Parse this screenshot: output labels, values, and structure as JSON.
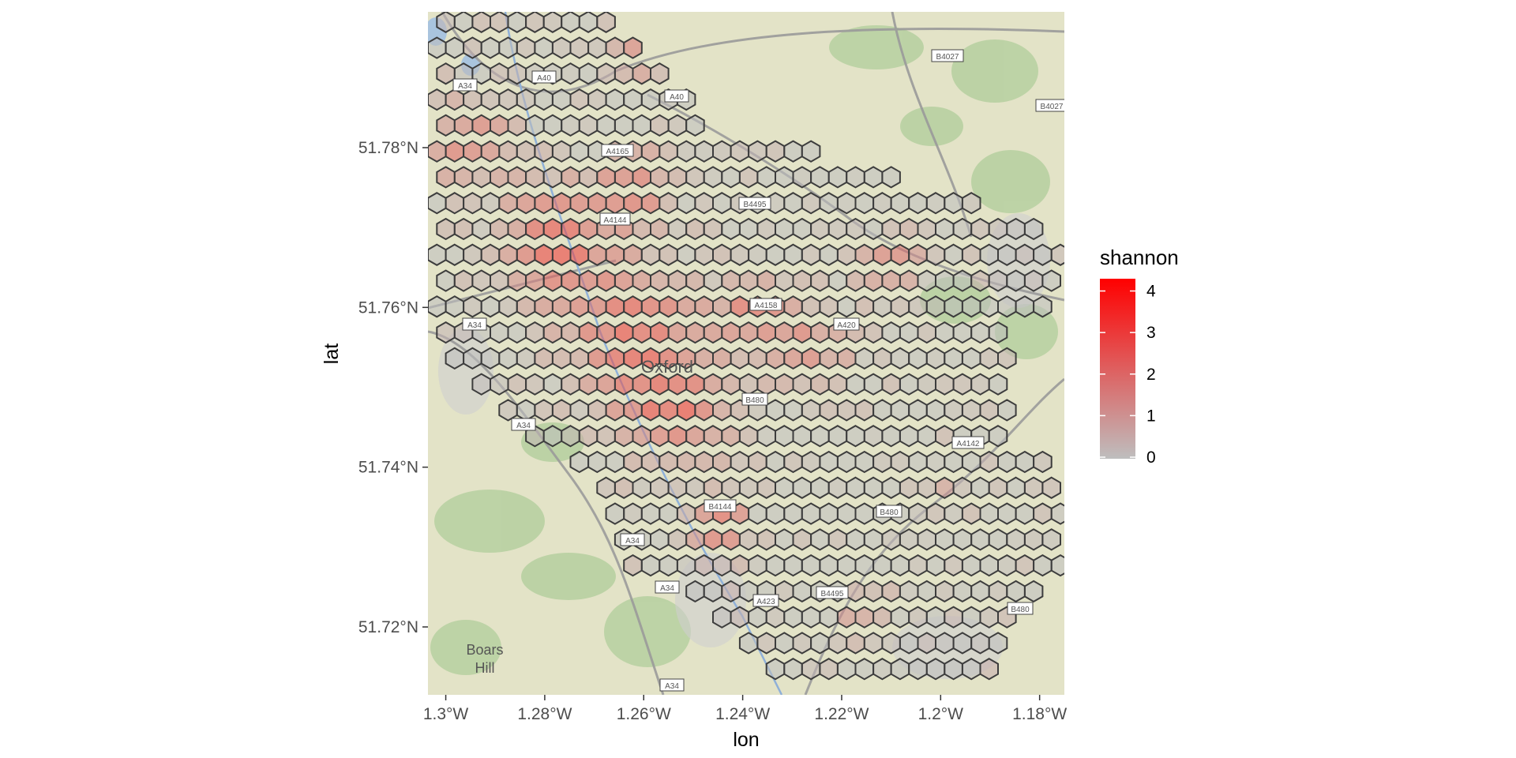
{
  "chart_data": {
    "type": "hexbin-map",
    "x_axis": {
      "title": "lon",
      "range": [
        -1.3036,
        -1.175
      ],
      "ticks": [
        {
          "value": -1.3,
          "label": "1.3°W"
        },
        {
          "value": -1.28,
          "label": "1.28°W"
        },
        {
          "value": -1.26,
          "label": "1.26°W"
        },
        {
          "value": -1.24,
          "label": "1.24°W"
        },
        {
          "value": -1.22,
          "label": "1.22°W"
        },
        {
          "value": -1.2,
          "label": "1.2°W"
        },
        {
          "value": -1.18,
          "label": "1.18°W"
        }
      ]
    },
    "y_axis": {
      "title": "lat",
      "range": [
        51.7115,
        51.797
      ],
      "ticks": [
        {
          "value": 51.72,
          "label": "51.72°N"
        },
        {
          "value": 51.74,
          "label": "51.74°N"
        },
        {
          "value": 51.76,
          "label": "51.76°N"
        },
        {
          "value": 51.78,
          "label": "51.78°N"
        }
      ]
    },
    "hex": {
      "lon_step": 0.0036,
      "lat_step": 0.00324,
      "origin_lon": -1.3036,
      "origin_lat": 51.7115
    },
    "clusters": [
      {
        "center": [
          -1.278,
          51.768
        ],
        "radius": 0.011,
        "peak": 2.8
      },
      {
        "center": [
          -1.262,
          51.757
        ],
        "radius": 0.013,
        "peak": 2.6
      },
      {
        "center": [
          -1.254,
          51.747
        ],
        "radius": 0.011,
        "peak": 2.6
      },
      {
        "center": [
          -1.262,
          51.775
        ],
        "radius": 0.008,
        "peak": 2.2
      },
      {
        "center": [
          -1.296,
          51.781
        ],
        "radius": 0.009,
        "peak": 2.0
      },
      {
        "center": [
          -1.245,
          51.733
        ],
        "radius": 0.006,
        "peak": 2.7
      },
      {
        "center": [
          -1.227,
          51.755
        ],
        "radius": 0.008,
        "peak": 2.1
      },
      {
        "center": [
          -1.21,
          51.765
        ],
        "radius": 0.006,
        "peak": 1.9
      },
      {
        "center": [
          -1.215,
          51.722
        ],
        "radius": 0.005,
        "peak": 1.5
      },
      {
        "center": [
          -1.238,
          51.76
        ],
        "radius": 0.007,
        "peak": 2.0
      },
      {
        "center": [
          -1.262,
          51.791
        ],
        "radius": 0.005,
        "peak": 1.6
      },
      {
        "center": [
          -1.2,
          51.736
        ],
        "radius": 0.004,
        "peak": 1.2
      }
    ],
    "fill_scale": {
      "name": "shannon",
      "min": 0,
      "max": 4.2,
      "low_color": "#bebebe",
      "high_color": "#ff0000",
      "ticks": [
        0,
        1,
        2,
        3,
        4
      ]
    },
    "legend": {
      "title": "shannon",
      "placement": "right"
    },
    "basemap": {
      "roads": [
        "A34",
        "A40",
        "A4165",
        "A4144",
        "B4495",
        "A4158",
        "A420",
        "B480",
        "A4142",
        "B4027",
        "B4144",
        "A423",
        "B4495",
        "B480"
      ],
      "places": [
        "Oxford",
        "Boars",
        "Hill"
      ]
    }
  }
}
